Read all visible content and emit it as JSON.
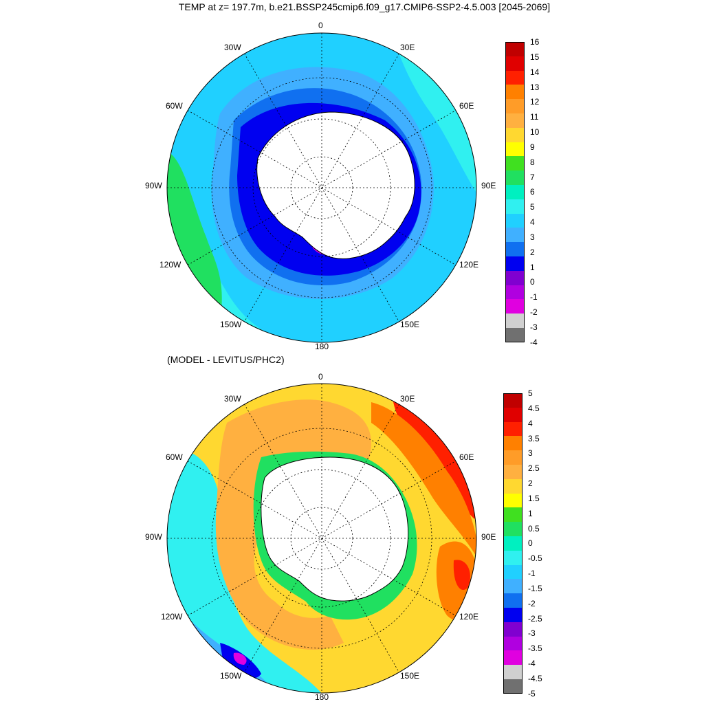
{
  "title": "TEMP at z= 197.7m, b.e21.BSSP245cmip6.f09_g17.CMIP6-SSP2-4.5.003 [2045-2069]",
  "subtitle": "(MODEL - LEVITUS/PHC2)",
  "lon_labels": [
    "0",
    "30E",
    "60E",
    "90E",
    "120E",
    "150E",
    "180",
    "150W",
    "120W",
    "90W",
    "60W",
    "30W"
  ],
  "top_colorbar": {
    "ticks": [
      "16",
      "15",
      "14",
      "13",
      "12",
      "11",
      "10",
      "9",
      "8",
      "7",
      "6",
      "5",
      "4",
      "3",
      "2",
      "1",
      "0",
      "-1",
      "-2",
      "-3",
      "-4"
    ],
    "colors": [
      "#c00000",
      "#e00000",
      "#ff2000",
      "#ff8000",
      "#ff9c28",
      "#ffb040",
      "#ffd830",
      "#ffff00",
      "#40e020",
      "#20e060",
      "#00f0c0",
      "#30f0f0",
      "#20d0ff",
      "#40b0ff",
      "#1070f0",
      "#0000f0",
      "#8000d0",
      "#b000e0",
      "#e000e0",
      "#d0d0d0",
      "#707070"
    ]
  },
  "bottom_colorbar": {
    "ticks": [
      "5",
      "4.5",
      "4",
      "3.5",
      "3",
      "2.5",
      "2",
      "1.5",
      "1",
      "0.5",
      "0",
      "-0.5",
      "-1",
      "-1.5",
      "-2",
      "-2.5",
      "-3",
      "-3.5",
      "-4",
      "-4.5",
      "-5"
    ],
    "colors": [
      "#c00000",
      "#e00000",
      "#ff2000",
      "#ff8000",
      "#ff9c28",
      "#ffb040",
      "#ffd830",
      "#ffff00",
      "#40e020",
      "#20e060",
      "#00f0c0",
      "#30f0f0",
      "#20d0ff",
      "#40b0ff",
      "#1070f0",
      "#0000f0",
      "#8000d0",
      "#b000e0",
      "#e000e0",
      "#d0d0d0",
      "#707070"
    ]
  },
  "colors": {
    "land": "#ffffff",
    "coast": "#000000"
  }
}
